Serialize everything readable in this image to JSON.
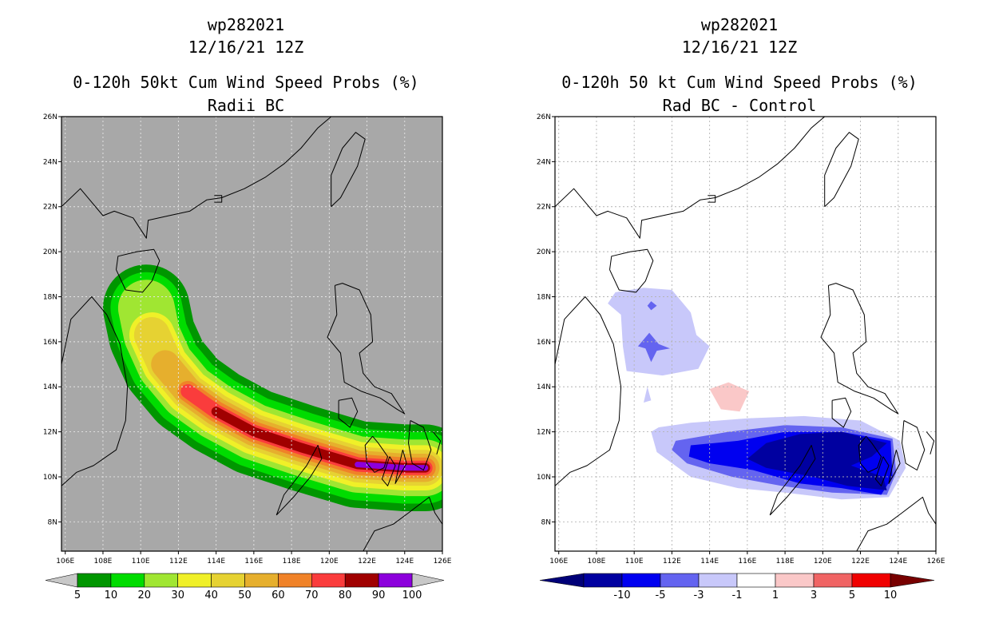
{
  "chart_data": [
    {
      "type": "heatmap",
      "id": "left",
      "title_lines": [
        "wp282021",
        "12/16/21 12Z",
        "0-120h 50kt Cum Wind Speed Probs (%)",
        "Radii BC"
      ],
      "xlabel": "",
      "ylabel": "",
      "x_ticks": [
        "106E",
        "108E",
        "110E",
        "112E",
        "114E",
        "116E",
        "118E",
        "120E",
        "122E",
        "124E",
        "126E"
      ],
      "y_ticks": [
        "8N",
        "10N",
        "12N",
        "14N",
        "16N",
        "18N",
        "20N",
        "22N",
        "24N",
        "26N"
      ],
      "xlim": [
        105.8,
        126.0
      ],
      "ylim": [
        6.7,
        26.0
      ],
      "grid": true,
      "background_color": "#a8a8a8",
      "colorbar": {
        "labels": [
          "5",
          "10",
          "20",
          "30",
          "40",
          "50",
          "60",
          "70",
          "80",
          "90",
          "100"
        ],
        "colors": [
          "#009600",
          "#00dc00",
          "#a0e632",
          "#f0f028",
          "#e6d232",
          "#e6af2d",
          "#f08228",
          "#fa3c3c",
          "#a00000",
          "#8c00dc"
        ],
        "end_colors": [
          "#c8c8c8",
          "#c8c8c8"
        ]
      },
      "swath": {
        "values": [
          5,
          10,
          20,
          30,
          40,
          50,
          60,
          70,
          80,
          90
        ],
        "centerline": [
          [
            125.1,
            10.4
          ],
          [
            124.0,
            10.4
          ],
          [
            121.5,
            10.55
          ],
          [
            118.5,
            11.3
          ],
          [
            116.0,
            12.0
          ],
          [
            114.0,
            12.9
          ],
          [
            112.5,
            13.8
          ],
          [
            111.3,
            15.0
          ],
          [
            110.6,
            16.3
          ],
          [
            110.3,
            17.5
          ]
        ],
        "half_widths_deg": [
          2.3,
          1.9,
          1.5,
          1.2,
          0.95,
          0.75,
          0.55,
          0.38,
          0.25,
          0.15
        ],
        "start_index": [
          9,
          9,
          9,
          8,
          8,
          7,
          6,
          6,
          5,
          2
        ]
      }
    },
    {
      "type": "heatmap",
      "id": "right",
      "title_lines": [
        "wp282021",
        "12/16/21 12Z",
        "0-120h 50 kt Cum Wind Speed Probs (%)",
        "Rad BC - Control"
      ],
      "xlabel": "",
      "ylabel": "",
      "x_ticks": [
        "106E",
        "108E",
        "110E",
        "112E",
        "114E",
        "116E",
        "118E",
        "120E",
        "122E",
        "124E",
        "126E"
      ],
      "y_ticks": [
        "8N",
        "10N",
        "12N",
        "14N",
        "16N",
        "18N",
        "20N",
        "22N",
        "24N",
        "26N"
      ],
      "xlim": [
        105.8,
        126.0
      ],
      "ylim": [
        6.7,
        26.0
      ],
      "grid": true,
      "background_color": "#ffffff",
      "colorbar": {
        "labels": [
          "-10",
          "-5",
          "-3",
          "-1",
          "1",
          "3",
          "5",
          "10"
        ],
        "colors": [
          "#0000a0",
          "#0000f0",
          "#6464f0",
          "#c8c8fa",
          "#ffffff",
          "#fac8c8",
          "#f06464",
          "#f00000"
        ],
        "end_colors": [
          "#000078",
          "#780000"
        ]
      },
      "contours": [
        {
          "value": -1,
          "polygon": [
            [
              109.0,
              18.2
            ],
            [
              110.5,
              18.4
            ],
            [
              112.0,
              18.3
            ],
            [
              113.0,
              17.3
            ],
            [
              113.3,
              16.3
            ],
            [
              114.0,
              15.8
            ],
            [
              113.4,
              14.8
            ],
            [
              111.5,
              14.5
            ],
            [
              109.6,
              14.7
            ],
            [
              109.4,
              15.8
            ],
            [
              109.3,
              17.2
            ],
            [
              108.6,
              17.7
            ]
          ]
        },
        {
          "value": -3,
          "polygon": [
            [
              110.8,
              16.4
            ],
            [
              111.3,
              15.9
            ],
            [
              111.9,
              15.7
            ],
            [
              111.2,
              15.6
            ],
            [
              110.9,
              15.1
            ],
            [
              110.6,
              15.7
            ],
            [
              110.2,
              15.8
            ]
          ]
        },
        {
          "value": -3,
          "polygon": [
            [
              110.9,
              17.8
            ],
            [
              111.2,
              17.6
            ],
            [
              110.9,
              17.4
            ],
            [
              110.7,
              17.6
            ]
          ]
        },
        {
          "value": 1,
          "polygon": [
            [
              114.0,
              13.9
            ],
            [
              115.0,
              14.2
            ],
            [
              116.1,
              13.8
            ],
            [
              115.6,
              12.9
            ],
            [
              114.6,
              13.0
            ]
          ]
        },
        {
          "value": -1,
          "polygon": [
            [
              111.3,
              12.2
            ],
            [
              113.0,
              12.4
            ],
            [
              116.0,
              12.6
            ],
            [
              119.0,
              12.7
            ],
            [
              122.0,
              12.5
            ],
            [
              124.1,
              11.6
            ],
            [
              124.4,
              10.4
            ],
            [
              123.5,
              9.1
            ],
            [
              121.0,
              9.0
            ],
            [
              118.0,
              9.3
            ],
            [
              115.5,
              9.5
            ],
            [
              113.0,
              10.0
            ],
            [
              111.2,
              11.1
            ],
            [
              110.9,
              12.0
            ]
          ]
        },
        {
          "value": -1,
          "polygon": [
            [
              110.7,
              14.0
            ],
            [
              110.9,
              13.4
            ],
            [
              110.5,
              13.3
            ]
          ]
        },
        {
          "value": -3,
          "polygon": [
            [
              112.2,
              11.6
            ],
            [
              115.0,
              12.0
            ],
            [
              118.0,
              12.3
            ],
            [
              121.0,
              12.2
            ],
            [
              123.7,
              11.7
            ],
            [
              123.9,
              10.2
            ],
            [
              123.4,
              9.2
            ],
            [
              120.5,
              9.3
            ],
            [
              117.8,
              9.6
            ],
            [
              115.2,
              10.0
            ],
            [
              112.8,
              10.6
            ],
            [
              112.0,
              11.2
            ]
          ]
        },
        {
          "value": -5,
          "polygon": [
            [
              113.0,
              11.4
            ],
            [
              115.5,
              11.6
            ],
            [
              118.0,
              12.0
            ],
            [
              121.0,
              12.0
            ],
            [
              123.6,
              11.6
            ],
            [
              123.7,
              10.0
            ],
            [
              123.1,
              9.2
            ],
            [
              121.0,
              9.5
            ],
            [
              118.8,
              9.7
            ],
            [
              116.3,
              10.3
            ],
            [
              114.0,
              10.6
            ],
            [
              112.9,
              10.9
            ]
          ]
        },
        {
          "value": -10,
          "polygon": [
            [
              116.0,
              10.8
            ],
            [
              117.0,
              11.5
            ],
            [
              118.8,
              11.9
            ],
            [
              121.0,
              12.0
            ],
            [
              123.4,
              11.5
            ],
            [
              122.6,
              10.9
            ],
            [
              121.5,
              10.5
            ],
            [
              123.2,
              10.0
            ],
            [
              123.4,
              9.4
            ],
            [
              121.3,
              9.6
            ],
            [
              119.5,
              10.0
            ],
            [
              117.0,
              10.4
            ]
          ]
        },
        {
          "value": -10,
          "polygon": [
            [
              118.6,
              10.9
            ],
            [
              119.4,
              11.0
            ],
            [
              119.6,
              10.6
            ],
            [
              118.8,
              10.6
            ]
          ]
        }
      ]
    }
  ]
}
